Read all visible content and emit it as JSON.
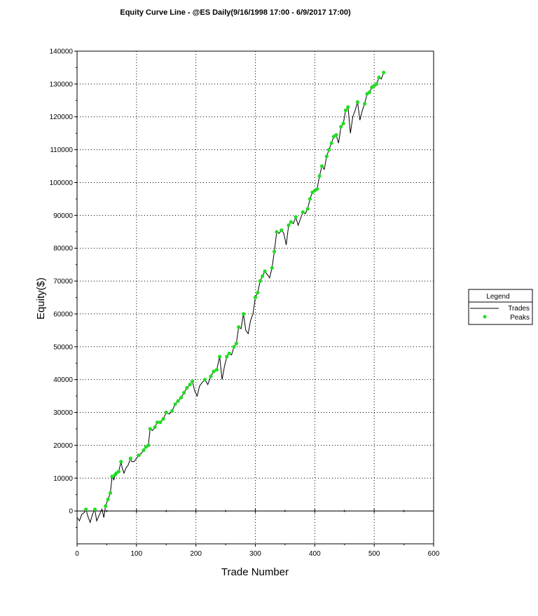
{
  "chart_data": {
    "type": "line",
    "title": "Equity Curve Line - @ES Daily(9/16/1998 17:00 - 6/9/2017 17:00)",
    "xlabel": "Trade Number",
    "ylabel": "Equity($)",
    "xlim": [
      0,
      600
    ],
    "ylim": [
      -10000,
      140000
    ],
    "x_ticks": [
      0,
      100,
      200,
      300,
      400,
      500,
      600
    ],
    "y_ticks": [
      0,
      10000,
      20000,
      30000,
      40000,
      50000,
      60000,
      70000,
      80000,
      90000,
      100000,
      110000,
      120000,
      130000,
      140000
    ],
    "grid": true,
    "legend": {
      "title": "Legend",
      "position": "right"
    },
    "series": [
      {
        "name": "Trades",
        "style": "line",
        "color": "#000000",
        "points": [
          [
            0,
            -2000
          ],
          [
            4,
            -3000
          ],
          [
            8,
            -1000
          ],
          [
            12,
            -500
          ],
          [
            15,
            500
          ],
          [
            18,
            -1500
          ],
          [
            22,
            -3500
          ],
          [
            26,
            -1000
          ],
          [
            30,
            500
          ],
          [
            33,
            -3000
          ],
          [
            38,
            -1000
          ],
          [
            42,
            500
          ],
          [
            45,
            -2000
          ],
          [
            48,
            1500
          ],
          [
            52,
            3500
          ],
          [
            56,
            5500
          ],
          [
            59,
            10500
          ],
          [
            62,
            9500
          ],
          [
            64,
            11000
          ],
          [
            66,
            11500
          ],
          [
            70,
            12000
          ],
          [
            74,
            15000
          ],
          [
            76,
            13000
          ],
          [
            79,
            11500
          ],
          [
            82,
            13000
          ],
          [
            86,
            14000
          ],
          [
            90,
            16000
          ],
          [
            92,
            15000
          ],
          [
            96,
            15000
          ],
          [
            100,
            16000
          ],
          [
            104,
            17000
          ],
          [
            108,
            17500
          ],
          [
            112,
            18500
          ],
          [
            116,
            19500
          ],
          [
            120,
            20000
          ],
          [
            123,
            25000
          ],
          [
            127,
            24500
          ],
          [
            131,
            25500
          ],
          [
            135,
            27000
          ],
          [
            140,
            27000
          ],
          [
            145,
            28000
          ],
          [
            150,
            30000
          ],
          [
            155,
            29500
          ],
          [
            160,
            30500
          ],
          [
            165,
            32500
          ],
          [
            170,
            33500
          ],
          [
            175,
            34500
          ],
          [
            180,
            36000
          ],
          [
            185,
            37500
          ],
          [
            190,
            38500
          ],
          [
            194,
            39500
          ],
          [
            198,
            36500
          ],
          [
            202,
            35000
          ],
          [
            206,
            38000
          ],
          [
            210,
            39000
          ],
          [
            215,
            40000
          ],
          [
            220,
            38500
          ],
          [
            225,
            41000
          ],
          [
            230,
            42500
          ],
          [
            235,
            43000
          ],
          [
            240,
            47000
          ],
          [
            244,
            40000
          ],
          [
            248,
            44000
          ],
          [
            252,
            47000
          ],
          [
            256,
            48000
          ],
          [
            260,
            47500
          ],
          [
            264,
            50000
          ],
          [
            268,
            51000
          ],
          [
            272,
            56000
          ],
          [
            276,
            55500
          ],
          [
            280,
            60000
          ],
          [
            284,
            55000
          ],
          [
            288,
            54000
          ],
          [
            292,
            58000
          ],
          [
            296,
            60000
          ],
          [
            300,
            65000
          ],
          [
            304,
            66500
          ],
          [
            308,
            70000
          ],
          [
            312,
            71500
          ],
          [
            316,
            73000
          ],
          [
            320,
            72000
          ],
          [
            324,
            71000
          ],
          [
            328,
            74000
          ],
          [
            332,
            79000
          ],
          [
            336,
            85000
          ],
          [
            340,
            84500
          ],
          [
            344,
            85500
          ],
          [
            348,
            84500
          ],
          [
            352,
            81000
          ],
          [
            356,
            87000
          ],
          [
            360,
            88000
          ],
          [
            364,
            87500
          ],
          [
            368,
            89500
          ],
          [
            372,
            87000
          ],
          [
            376,
            89000
          ],
          [
            380,
            91000
          ],
          [
            384,
            90500
          ],
          [
            388,
            92000
          ],
          [
            392,
            95000
          ],
          [
            396,
            97000
          ],
          [
            400,
            97500
          ],
          [
            404,
            98000
          ],
          [
            408,
            102000
          ],
          [
            412,
            105000
          ],
          [
            416,
            104000
          ],
          [
            420,
            108000
          ],
          [
            424,
            110000
          ],
          [
            428,
            112000
          ],
          [
            432,
            114000
          ],
          [
            436,
            114500
          ],
          [
            440,
            112000
          ],
          [
            444,
            117000
          ],
          [
            448,
            118000
          ],
          [
            452,
            122000
          ],
          [
            456,
            123000
          ],
          [
            460,
            115000
          ],
          [
            464,
            120000
          ],
          [
            468,
            122000
          ],
          [
            472,
            124500
          ],
          [
            476,
            119000
          ],
          [
            480,
            122000
          ],
          [
            484,
            124000
          ],
          [
            488,
            127000
          ],
          [
            492,
            127500
          ],
          [
            496,
            129000
          ],
          [
            500,
            129500
          ],
          [
            504,
            130000
          ],
          [
            508,
            132000
          ],
          [
            512,
            131500
          ],
          [
            516,
            133500
          ]
        ]
      },
      {
        "name": "Peaks",
        "style": "markers",
        "color": "#22dd22",
        "points": [
          [
            15,
            500
          ],
          [
            30,
            500
          ],
          [
            48,
            1500
          ],
          [
            52,
            3500
          ],
          [
            56,
            5500
          ],
          [
            59,
            10500
          ],
          [
            64,
            11000
          ],
          [
            66,
            11500
          ],
          [
            70,
            12000
          ],
          [
            74,
            15000
          ],
          [
            90,
            16000
          ],
          [
            104,
            17000
          ],
          [
            112,
            18500
          ],
          [
            116,
            19500
          ],
          [
            120,
            20000
          ],
          [
            123,
            25000
          ],
          [
            131,
            25500
          ],
          [
            135,
            27000
          ],
          [
            140,
            27000
          ],
          [
            145,
            28000
          ],
          [
            150,
            30000
          ],
          [
            160,
            30500
          ],
          [
            165,
            32500
          ],
          [
            170,
            33500
          ],
          [
            175,
            34500
          ],
          [
            180,
            36000
          ],
          [
            185,
            37500
          ],
          [
            190,
            38500
          ],
          [
            194,
            39500
          ],
          [
            215,
            40000
          ],
          [
            225,
            41000
          ],
          [
            230,
            42500
          ],
          [
            235,
            43000
          ],
          [
            240,
            47000
          ],
          [
            252,
            47000
          ],
          [
            256,
            48000
          ],
          [
            264,
            50000
          ],
          [
            268,
            51000
          ],
          [
            272,
            56000
          ],
          [
            280,
            60000
          ],
          [
            300,
            65000
          ],
          [
            304,
            66500
          ],
          [
            308,
            70000
          ],
          [
            312,
            71500
          ],
          [
            316,
            73000
          ],
          [
            328,
            74000
          ],
          [
            332,
            79000
          ],
          [
            336,
            85000
          ],
          [
            344,
            85500
          ],
          [
            356,
            87000
          ],
          [
            360,
            88000
          ],
          [
            368,
            89500
          ],
          [
            380,
            91000
          ],
          [
            388,
            92000
          ],
          [
            392,
            95000
          ],
          [
            396,
            97000
          ],
          [
            400,
            97500
          ],
          [
            404,
            98000
          ],
          [
            408,
            102000
          ],
          [
            412,
            105000
          ],
          [
            420,
            108000
          ],
          [
            424,
            110000
          ],
          [
            428,
            112000
          ],
          [
            432,
            114000
          ],
          [
            436,
            114500
          ],
          [
            444,
            117000
          ],
          [
            448,
            118000
          ],
          [
            452,
            122000
          ],
          [
            456,
            123000
          ],
          [
            472,
            124500
          ],
          [
            484,
            124000
          ],
          [
            488,
            127000
          ],
          [
            492,
            127500
          ],
          [
            496,
            129000
          ],
          [
            500,
            129500
          ],
          [
            504,
            130000
          ],
          [
            508,
            132000
          ],
          [
            516,
            133500
          ]
        ]
      }
    ]
  }
}
